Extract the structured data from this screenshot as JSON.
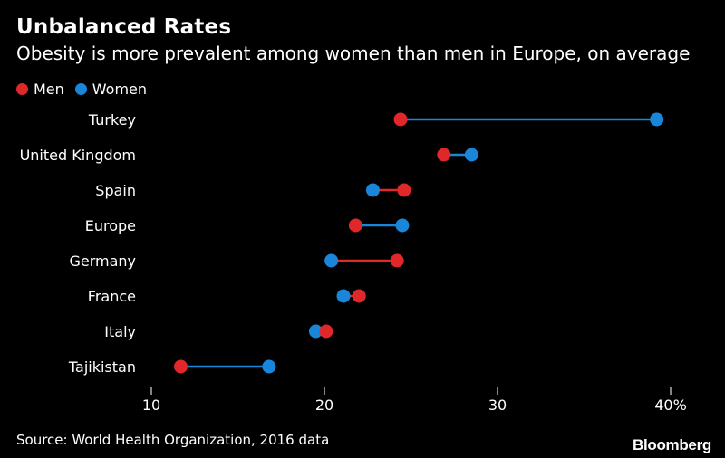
{
  "header": {
    "title": "Unbalanced Rates",
    "subtitle": "Obesity is more prevalent among women than men in Europe, on average"
  },
  "legend": [
    {
      "label": "Men",
      "color": "#e0272a"
    },
    {
      "label": "Women",
      "color": "#1a86d9"
    }
  ],
  "footer": {
    "source": "Source: World Health Organization, 2016 data",
    "brand": "Bloomberg"
  },
  "chart_data": {
    "type": "dumbbell",
    "title": "Unbalanced Rates",
    "subtitle": "Obesity is more prevalent among women than men in Europe, on average",
    "xlabel": "",
    "ylabel": "",
    "unit": "%",
    "xlim": [
      10,
      40
    ],
    "xticks": [
      10,
      20,
      30,
      40
    ],
    "xtick_labels": [
      "10",
      "20",
      "30",
      "40%"
    ],
    "grid": false,
    "legend_position": "top-left",
    "categories": [
      "Turkey",
      "United Kingdom",
      "Spain",
      "Europe",
      "Germany",
      "France",
      "Italy",
      "Tajikistan"
    ],
    "series": [
      {
        "name": "Men",
        "color": "#e0272a",
        "values": [
          24.4,
          26.9,
          24.6,
          21.8,
          24.2,
          22.0,
          20.1,
          11.7
        ]
      },
      {
        "name": "Women",
        "color": "#1a86d9",
        "values": [
          39.2,
          28.5,
          22.8,
          24.5,
          20.4,
          21.1,
          19.5,
          16.8
        ]
      }
    ]
  }
}
